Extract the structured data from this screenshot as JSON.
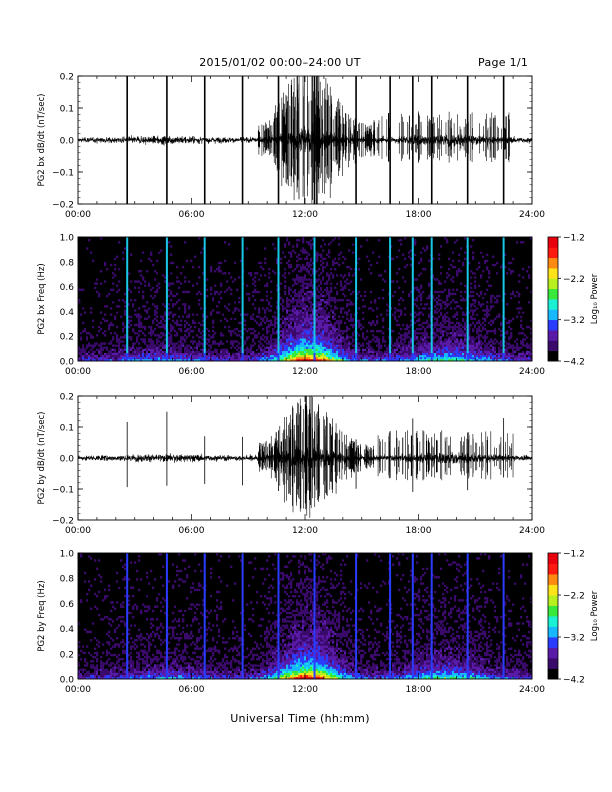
{
  "header": {
    "title": "2015/01/02  00:00–24:00 UT",
    "page": "Page 1/1"
  },
  "xlabel": "Universal Time (hh:mm)",
  "colors": {
    "background": "#ffffff",
    "trace": "#000000",
    "spectrogram_background": "#000000",
    "colormap": [
      "#000000",
      "#3a0a6b",
      "#5a1aa8",
      "#2a3cff",
      "#18b8ff",
      "#19f0d4",
      "#38e83a",
      "#b8ef1f",
      "#ffe319",
      "#ff8a12",
      "#ff1a10",
      "#e8000c"
    ]
  },
  "chart_data": [
    {
      "type": "line",
      "id": "bx-dbdt",
      "ylabel": "PG2 bx dB/dt (nT/sec)",
      "x_tick_labels": [
        "00:00",
        "06:00",
        "12:00",
        "18:00",
        "24:00"
      ],
      "x_range_hours": [
        0,
        24
      ],
      "y_ticks": [
        "−0.2",
        "−0.1",
        "0.0",
        "0.1",
        "0.2"
      ],
      "ylim": [
        -0.2,
        0.2
      ],
      "note_values": "noisy time series; high-amplitude spikes at ~2.6, 4.7, 6.7, 8.7, 10.6, 12.5, 14.7, 16.5, 17.7, 18.7, 20.6, 22.5 h; strongest activity 10–15 h",
      "spikes_hours": [
        2.6,
        4.7,
        6.7,
        8.7,
        10.6,
        12.5,
        14.7,
        16.5,
        17.7,
        18.7,
        20.6,
        22.5
      ]
    },
    {
      "type": "heatmap",
      "id": "bx-spectrogram",
      "ylabel": "PG2 bx Freq (Hz)",
      "x_tick_labels": [
        "00:00",
        "06:00",
        "12:00",
        "18:00",
        "24:00"
      ],
      "x_range_hours": [
        0,
        24
      ],
      "y_ticks": [
        "0.0",
        "0.2",
        "0.4",
        "0.6",
        "0.8",
        "1.0"
      ],
      "ylim": [
        0,
        1.0
      ],
      "colorbar": {
        "label": "Log₁₀ Power",
        "range": [
          -4.2,
          -1.2
        ],
        "ticks": [
          "−1.2",
          "−2.2",
          "−3.2",
          "−4.2"
        ]
      },
      "spikes_hours": [
        2.6,
        4.7,
        6.7,
        8.7,
        10.6,
        12.5,
        14.7,
        16.5,
        17.7,
        18.7,
        20.6,
        22.5
      ]
    },
    {
      "type": "line",
      "id": "by-dbdt",
      "ylabel": "PG2 by dB/dt (nT/sec)",
      "x_tick_labels": [
        "00:00",
        "06:00",
        "12:00",
        "18:00",
        "24:00"
      ],
      "x_range_hours": [
        0,
        24
      ],
      "y_ticks": [
        "−0.2",
        "−0.1",
        "0.0",
        "0.1",
        "0.2"
      ],
      "ylim": [
        -0.2,
        0.2
      ],
      "spikes_hours": [
        2.6,
        4.7,
        6.7,
        8.7,
        10.6,
        12.5,
        14.7,
        16.5,
        17.7,
        18.7,
        20.6,
        22.5
      ]
    },
    {
      "type": "heatmap",
      "id": "by-spectrogram",
      "ylabel": "PG2 by Freq (Hz)",
      "x_tick_labels": [
        "00:00",
        "06:00",
        "12:00",
        "18:00",
        "24:00"
      ],
      "x_range_hours": [
        0,
        24
      ],
      "y_ticks": [
        "0.0",
        "0.2",
        "0.4",
        "0.6",
        "0.8",
        "1.0"
      ],
      "ylim": [
        0,
        1.0
      ],
      "colorbar": {
        "label": "Log₁₀ Power",
        "range": [
          -4.2,
          -1.2
        ],
        "ticks": [
          "−1.2",
          "−2.2",
          "−3.2",
          "−4.2"
        ]
      },
      "spikes_hours": [
        2.6,
        4.7,
        6.7,
        8.7,
        10.6,
        12.5,
        14.7,
        16.5,
        17.7,
        18.7,
        20.6,
        22.5
      ]
    }
  ]
}
